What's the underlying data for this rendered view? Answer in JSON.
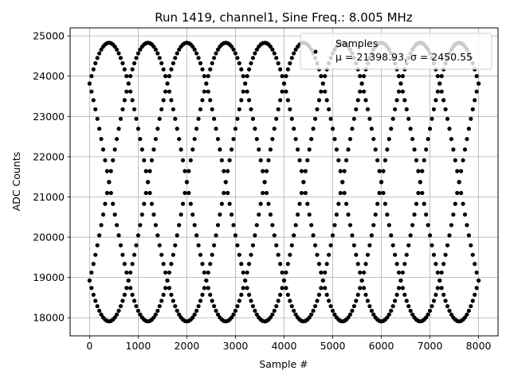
{
  "chart_data": {
    "type": "scatter",
    "title": "Run 1419, channel1, Sine Freq.: 8.005 MHz",
    "xlabel": "Sample #",
    "ylabel": "ADC Counts",
    "xlim": [
      -400,
      8400
    ],
    "ylim": [
      17550,
      25200
    ],
    "xticks": [
      0,
      1000,
      2000,
      3000,
      4000,
      5000,
      6000,
      7000,
      8000
    ],
    "yticks": [
      18000,
      19000,
      20000,
      21000,
      22000,
      23000,
      24000,
      25000
    ],
    "grid": true,
    "legend": {
      "placement": "top-right",
      "series_label": "Samples",
      "stats_label": "μ = 21398.93, σ = 2450.55"
    },
    "marker_color": "#000000",
    "series": [
      {
        "name": "Samples",
        "model": {
          "mean": 21370,
          "amplitude": 3460,
          "samples_per_cycle": 3200,
          "phase_offsets_deg": [
            -45,
            45,
            135,
            225
          ],
          "x_start": 0,
          "x_end": 8000,
          "x_step": 40
        }
      }
    ]
  }
}
